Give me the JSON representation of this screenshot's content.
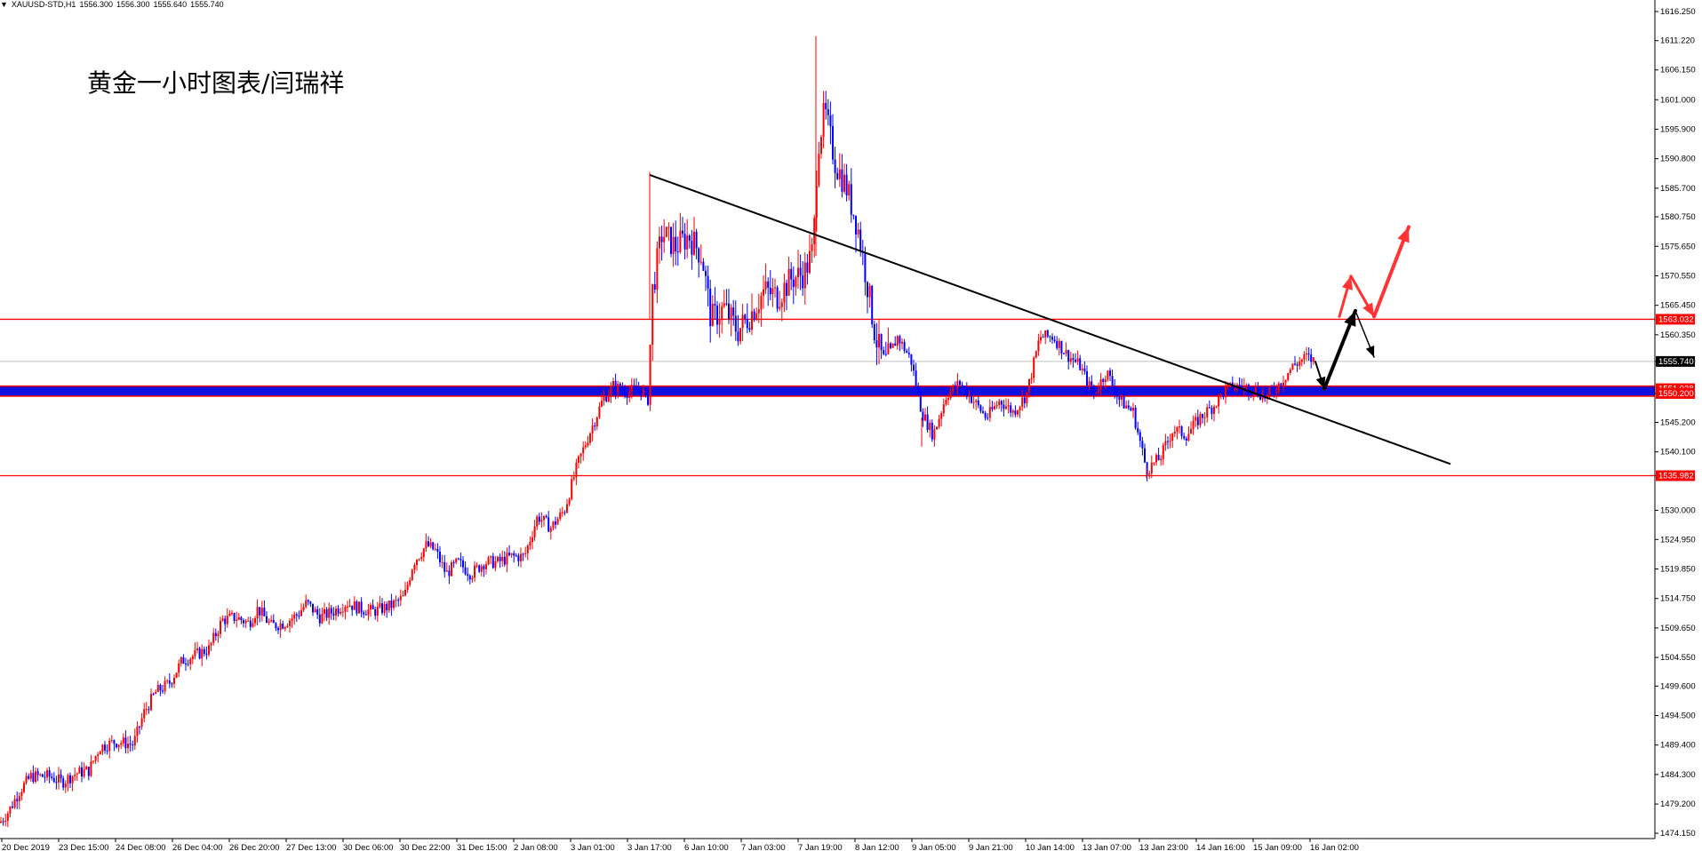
{
  "header": {
    "menu_glyph": "▼",
    "symbol": "XAUUSD-STD,H1",
    "open": "1556.300",
    "high": "1556.300",
    "low": "1555.640",
    "close": "1555.740"
  },
  "annotation": {
    "text": "黄金一小时图表/闫瑞祥"
  },
  "colors": {
    "bull_candle": "#ff0000",
    "bear_candle": "#0000ff",
    "level_line": "#ff0000",
    "band_fill": "#1010e0",
    "trendline": "#000000",
    "arrow_black": "#000000",
    "arrow_red": "#ff3333",
    "current_price_line": "#c0c0c0",
    "price_label_bg": "#ff0000",
    "current_label_bg": "#000000"
  },
  "chart_data": {
    "type": "candlestick",
    "ylim": [
      1474.0,
      1618.0
    ],
    "y_ticks": [
      "1616.250",
      "1611.220",
      "1606.150",
      "1601.000",
      "1595.900",
      "1590.800",
      "1585.700",
      "1580.750",
      "1575.650",
      "1570.550",
      "1565.450",
      "1560.350",
      "1555.740",
      "1550.200",
      "1545.200",
      "1540.100",
      "1535.982",
      "1530.000",
      "1524.950",
      "1519.850",
      "1514.750",
      "1509.650",
      "1504.550",
      "1499.600",
      "1494.500",
      "1489.400",
      "1484.300",
      "1479.200",
      "1474.150"
    ],
    "x_labels": [
      "20 Dec 2019",
      "23 Dec 15:00",
      "24 Dec 08:00",
      "26 Dec 04:00",
      "26 Dec 20:00",
      "27 Dec 13:00",
      "30 Dec 06:00",
      "30 Dec 22:00",
      "31 Dec 15:00",
      "2 Jan 08:00",
      "3 Jan 01:00",
      "3 Jan 17:00",
      "6 Jan 10:00",
      "7 Jan 03:00",
      "7 Jan 19:00",
      "8 Jan 12:00",
      "9 Jan 05:00",
      "9 Jan 21:00",
      "10 Jan 14:00",
      "13 Jan 07:00",
      "13 Jan 23:00",
      "14 Jan 16:00",
      "15 Jan 09:00",
      "16 Jan 02:00"
    ],
    "price_path": [
      [
        0,
        1476.0
      ],
      [
        10,
        1478.0
      ],
      [
        22,
        1481.5
      ],
      [
        35,
        1484.0
      ],
      [
        55,
        1484.0
      ],
      [
        70,
        1483.0
      ],
      [
        85,
        1484.5
      ],
      [
        100,
        1485.0
      ],
      [
        112,
        1489.0
      ],
      [
        130,
        1490.0
      ],
      [
        150,
        1489.5
      ],
      [
        162,
        1495.0
      ],
      [
        175,
        1498.5
      ],
      [
        190,
        1500.0
      ],
      [
        205,
        1504.0
      ],
      [
        220,
        1505.0
      ],
      [
        235,
        1506.0
      ],
      [
        250,
        1511.0
      ],
      [
        265,
        1511.5
      ],
      [
        280,
        1510.5
      ],
      [
        290,
        1513.0
      ],
      [
        305,
        1510.0
      ],
      [
        320,
        1510.5
      ],
      [
        335,
        1512.0
      ],
      [
        345,
        1514.0
      ],
      [
        360,
        1511.5
      ],
      [
        375,
        1512.5
      ],
      [
        390,
        1514.0
      ],
      [
        405,
        1513.0
      ],
      [
        420,
        1512.5
      ],
      [
        440,
        1513.5
      ],
      [
        455,
        1515.0
      ],
      [
        465,
        1521.0
      ],
      [
        480,
        1524.0
      ],
      [
        490,
        1523.0
      ],
      [
        502,
        1519.0
      ],
      [
        515,
        1521.0
      ],
      [
        530,
        1519.0
      ],
      [
        545,
        1521.0
      ],
      [
        560,
        1521.0
      ],
      [
        575,
        1522.0
      ],
      [
        590,
        1522.0
      ],
      [
        605,
        1529.0
      ],
      [
        620,
        1527.0
      ],
      [
        635,
        1530.0
      ],
      [
        650,
        1538.0
      ],
      [
        665,
        1544.0
      ],
      [
        678,
        1549.0
      ],
      [
        690,
        1551.5
      ],
      [
        705,
        1550.5
      ],
      [
        720,
        1551.0
      ],
      [
        730,
        1549.0
      ],
      [
        733,
        1567.0
      ],
      [
        745,
        1578.0
      ],
      [
        760,
        1575.5
      ],
      [
        775,
        1577.5
      ],
      [
        790,
        1574.0
      ],
      [
        800,
        1563.0
      ],
      [
        815,
        1565.0
      ],
      [
        830,
        1561.0
      ],
      [
        845,
        1564.0
      ],
      [
        860,
        1568.0
      ],
      [
        875,
        1567.0
      ],
      [
        890,
        1570.0
      ],
      [
        905,
        1571.0
      ],
      [
        915,
        1575.0
      ],
      [
        920,
        1593.0
      ],
      [
        928,
        1599.0
      ],
      [
        940,
        1590.0
      ],
      [
        952,
        1586.0
      ],
      [
        965,
        1579.0
      ],
      [
        975,
        1570.0
      ],
      [
        985,
        1560.0
      ],
      [
        995,
        1555.0
      ],
      [
        1010,
        1560.0
      ],
      [
        1025,
        1556.0
      ],
      [
        1037,
        1547.0
      ],
      [
        1050,
        1543.0
      ],
      [
        1065,
        1550.0
      ],
      [
        1080,
        1552.0
      ],
      [
        1095,
        1549.0
      ],
      [
        1110,
        1546.0
      ],
      [
        1125,
        1549.0
      ],
      [
        1140,
        1547.0
      ],
      [
        1155,
        1550.0
      ],
      [
        1170,
        1560.0
      ],
      [
        1185,
        1560.0
      ],
      [
        1200,
        1557.0
      ],
      [
        1215,
        1555.0
      ],
      [
        1230,
        1550.0
      ],
      [
        1245,
        1554.0
      ],
      [
        1260,
        1549.0
      ],
      [
        1275,
        1547.0
      ],
      [
        1290,
        1537.0
      ],
      [
        1305,
        1539.0
      ],
      [
        1320,
        1544.0
      ],
      [
        1335,
        1543.0
      ],
      [
        1350,
        1546.0
      ],
      [
        1365,
        1548.0
      ],
      [
        1380,
        1551.0
      ],
      [
        1395,
        1551.5
      ],
      [
        1410,
        1551.0
      ],
      [
        1425,
        1549.5
      ],
      [
        1440,
        1552.0
      ],
      [
        1455,
        1555.0
      ],
      [
        1470,
        1556.5
      ],
      [
        1480,
        1555.7
      ]
    ],
    "horizontal_levels": [
      {
        "price": 1563.032,
        "label": "1563.032"
      },
      {
        "price": 1535.982,
        "label": "1535.982"
      }
    ],
    "support_band": {
      "from": 1550.2,
      "to": 1551.028,
      "labels": [
        "1551.028",
        "1550.200"
      ]
    },
    "current_price": {
      "price": 1555.74,
      "label": "1555.740"
    },
    "trendline": {
      "from": {
        "bar": 731,
        "price": 1588.0
      },
      "to": {
        "bar": 1632,
        "price": 1538.0
      }
    },
    "projection_black": [
      {
        "bar": 1480,
        "price": 1555.7
      },
      {
        "bar": 1490,
        "price": 1551.0
      },
      {
        "bar": 1525,
        "price": 1564.5
      },
      {
        "bar": 1546,
        "price": 1556.5
      }
    ],
    "projection_red": [
      {
        "bar": 1507,
        "price": 1563.5
      },
      {
        "bar": 1520,
        "price": 1570.5
      },
      {
        "bar": 1546,
        "price": 1563.5
      },
      {
        "bar": 1585,
        "price": 1579.0
      }
    ]
  }
}
